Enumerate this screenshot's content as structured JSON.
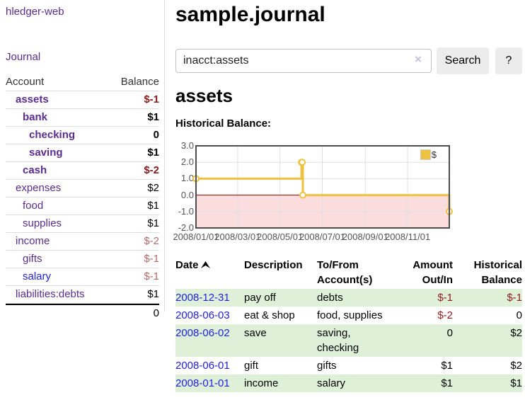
{
  "app": {
    "title": "hledger-web",
    "nav_journal": "Journal"
  },
  "colors": {
    "link_purple": "#5b2d90",
    "link_blue": "#2121dd",
    "negative_strong": "#8e1b1b",
    "negative_muted": "#b36b6e",
    "row_green": "#dff0d8",
    "chart_line_gold": "#edc240",
    "chart_negative_bg": "#fbdddd",
    "zero_line": "#8b0000"
  },
  "sidebar": {
    "headers": {
      "account": "Account",
      "balance": "Balance"
    },
    "rows": [
      {
        "account": "assets",
        "balance": "$-1",
        "depth": 1,
        "bold": true,
        "negative": "strong"
      },
      {
        "account": "bank",
        "balance": "$1",
        "depth": 2,
        "bold": true,
        "negative": "none"
      },
      {
        "account": "checking",
        "balance": "0",
        "depth": 3,
        "bold": true,
        "negative": "none"
      },
      {
        "account": "saving",
        "balance": "$1",
        "depth": 3,
        "bold": true,
        "negative": "none"
      },
      {
        "account": "cash",
        "balance": "$-2",
        "depth": 2,
        "bold": true,
        "negative": "strong"
      },
      {
        "account": "expenses",
        "balance": "$2",
        "depth": 1,
        "bold": false,
        "negative": "none"
      },
      {
        "account": "food",
        "balance": "$1",
        "depth": 2,
        "bold": false,
        "negative": "none"
      },
      {
        "account": "supplies",
        "balance": "$1",
        "depth": 2,
        "bold": false,
        "negative": "none"
      },
      {
        "account": "income",
        "balance": "$-2",
        "depth": 1,
        "bold": false,
        "negative": "muted"
      },
      {
        "account": "gifts",
        "balance": "$-1",
        "depth": 2,
        "bold": false,
        "negative": "muted"
      },
      {
        "account": "salary",
        "balance": "$-1",
        "depth": 2,
        "bold": false,
        "negative": "muted",
        "link_color": "blue"
      },
      {
        "account": "liabilities:debts",
        "balance": "$1",
        "depth": 1,
        "bold": false,
        "negative": "none"
      }
    ],
    "total": "0"
  },
  "main": {
    "title": "sample.journal",
    "search": {
      "value": "inacct:assets",
      "clear_label": "×",
      "button": "Search",
      "help": "?"
    },
    "account_heading": "assets",
    "chart_label": "Historical Balance:"
  },
  "chart_data": {
    "type": "line",
    "step": true,
    "legend": "$",
    "legend_position": "top-right",
    "series": [
      {
        "name": "$",
        "color": "#edc240",
        "x": [
          "2008-01-01",
          "2008-06-01",
          "2008-06-02",
          "2008-06-03",
          "2008-12-31"
        ],
        "y": [
          1,
          2,
          2,
          0,
          -1
        ]
      }
    ],
    "x_ticks": [
      "2008/01/01",
      "2008/03/01",
      "2008/05/01",
      "2008/07/01",
      "2008/09/01",
      "2008/11/01"
    ],
    "y_ticks": [
      "3.0",
      "2.0",
      "1.0",
      "0.0",
      "-1.0",
      "-2.0"
    ],
    "xlim": [
      "2008-01-01",
      "2008-12-31"
    ],
    "ylim": [
      -2,
      3
    ],
    "grid": true,
    "negative_fill": "#fbdddd",
    "zero_line_color": "#8b0000"
  },
  "register": {
    "sort": {
      "column": "date",
      "direction": "ascending"
    },
    "headers": {
      "date": "Date",
      "description": "Description",
      "accounts": "To/From Account(s)",
      "amount": "Amount Out/In",
      "balance": "Historical Balance"
    },
    "rows": [
      {
        "date": "2008-12-31",
        "description": "pay off",
        "accounts": "debts",
        "amount": "$-1",
        "amount_neg": true,
        "balance": "$-1",
        "balance_neg": true
      },
      {
        "date": "2008-06-03",
        "description": "eat & shop",
        "accounts": "food, supplies",
        "amount": "$-2",
        "amount_neg": true,
        "balance": "0",
        "balance_neg": false
      },
      {
        "date": "2008-06-02",
        "description": "save",
        "accounts": "saving, checking",
        "amount": "0",
        "amount_neg": false,
        "balance": "$2",
        "balance_neg": false
      },
      {
        "date": "2008-06-01",
        "description": "gift",
        "accounts": "gifts",
        "amount": "$1",
        "amount_neg": false,
        "balance": "$2",
        "balance_neg": false
      },
      {
        "date": "2008-01-01",
        "description": "income",
        "accounts": "salary",
        "amount": "$1",
        "amount_neg": false,
        "balance": "$1",
        "balance_neg": false
      }
    ]
  }
}
